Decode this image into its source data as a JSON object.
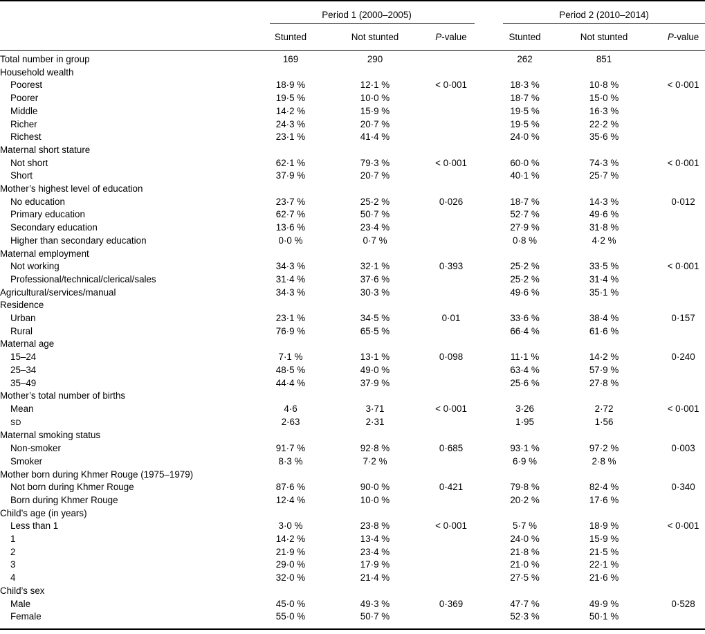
{
  "table": {
    "period_groups": [
      {
        "label": "Period 1 (2000–2005)"
      },
      {
        "label": "Period 2 (2010–2014)"
      }
    ],
    "column_headers": {
      "stunted": "Stunted",
      "not_stunted": "Not stunted",
      "p_value_italic": "P",
      "p_value_rest": "-value"
    },
    "rows": [
      {
        "label": "Total number in group",
        "indent": 0,
        "cells": [
          "169",
          "290",
          "",
          "262",
          "851",
          ""
        ]
      },
      {
        "label": "Household wealth",
        "indent": 0,
        "category": true,
        "cells": []
      },
      {
        "label": "Poorest",
        "indent": 1,
        "cells": [
          "18·9 %",
          "12·1 %",
          "< 0·001",
          "18·3 %",
          "10·8 %",
          "< 0·001"
        ]
      },
      {
        "label": "Poorer",
        "indent": 1,
        "cells": [
          "19·5 %",
          "10·0 %",
          "",
          "18·7 %",
          "15·0 %",
          ""
        ]
      },
      {
        "label": "Middle",
        "indent": 1,
        "cells": [
          "14·2 %",
          "15·9 %",
          "",
          "19·5 %",
          "16·3 %",
          ""
        ]
      },
      {
        "label": "Richer",
        "indent": 1,
        "cells": [
          "24·3 %",
          "20·7 %",
          "",
          "19·5 %",
          "22·2 %",
          ""
        ]
      },
      {
        "label": "Richest",
        "indent": 1,
        "cells": [
          "23·1 %",
          "41·4 %",
          "",
          "24·0 %",
          "35·6 %",
          ""
        ]
      },
      {
        "label": "Maternal short stature",
        "indent": 0,
        "category": true,
        "cells": []
      },
      {
        "label": "Not short",
        "indent": 1,
        "cells": [
          "62·1 %",
          "79·3 %",
          "< 0·001",
          "60·0 %",
          "74·3 %",
          "< 0·001"
        ]
      },
      {
        "label": "Short",
        "indent": 1,
        "cells": [
          "37·9 %",
          "20·7 %",
          "",
          "40·1 %",
          "25·7 %",
          ""
        ]
      },
      {
        "label": "Mother’s highest level of education",
        "indent": 0,
        "category": true,
        "cells": []
      },
      {
        "label": "No education",
        "indent": 1,
        "cells": [
          "23·7 %",
          "25·2 %",
          "0·026",
          "18·7 %",
          "14·3 %",
          "0·012"
        ]
      },
      {
        "label": "Primary education",
        "indent": 1,
        "cells": [
          "62·7 %",
          "50·7 %",
          "",
          "52·7 %",
          "49·6 %",
          ""
        ]
      },
      {
        "label": "Secondary education",
        "indent": 1,
        "cells": [
          "13·6 %",
          "23·4 %",
          "",
          "27·9 %",
          "31·8 %",
          ""
        ]
      },
      {
        "label": "Higher than secondary education",
        "indent": 1,
        "cells": [
          "0·0 %",
          "0·7 %",
          "",
          "0·8 %",
          "4·2 %",
          ""
        ]
      },
      {
        "label": "Maternal employment",
        "indent": 0,
        "category": true,
        "cells": []
      },
      {
        "label": "Not working",
        "indent": 1,
        "cells": [
          "34·3 %",
          "32·1 %",
          "0·393",
          "25·2 %",
          "33·5 %",
          "< 0·001"
        ]
      },
      {
        "label": "Professional/technical/clerical/sales",
        "indent": 1,
        "cells": [
          "31·4 %",
          "37·6 %",
          "",
          "25·2 %",
          "31·4 %",
          ""
        ]
      },
      {
        "label": "Agricultural/services/manual",
        "indent": 0,
        "cells": [
          "34·3 %",
          "30·3 %",
          "",
          "49·6 %",
          "35·1 %",
          ""
        ]
      },
      {
        "label": "Residence",
        "indent": 0,
        "category": true,
        "cells": []
      },
      {
        "label": "Urban",
        "indent": 1,
        "cells": [
          "23·1 %",
          "34·5 %",
          "0·01",
          "33·6 %",
          "38·4 %",
          "0·157"
        ]
      },
      {
        "label": "Rural",
        "indent": 1,
        "cells": [
          "76·9 %",
          "65·5 %",
          "",
          "66·4 %",
          "61·6 %",
          ""
        ]
      },
      {
        "label": "Maternal age",
        "indent": 0,
        "category": true,
        "cells": []
      },
      {
        "label": "15–24",
        "indent": 1,
        "cells": [
          "7·1 %",
          "13·1 %",
          "0·098",
          "11·1 %",
          "14·2 %",
          "0·240"
        ]
      },
      {
        "label": "25–34",
        "indent": 1,
        "cells": [
          "48·5 %",
          "49·0 %",
          "",
          "63·4 %",
          "57·9 %",
          ""
        ]
      },
      {
        "label": "35–49",
        "indent": 1,
        "cells": [
          "44·4 %",
          "37·9 %",
          "",
          "25·6 %",
          "27·8 %",
          ""
        ]
      },
      {
        "label": "Mother’s total number of births",
        "indent": 0,
        "category": true,
        "cells": []
      },
      {
        "label": "Mean",
        "indent": 1,
        "cells": [
          "4·6",
          "3·71",
          "< 0·001",
          "3·26",
          "2·72",
          "< 0·001"
        ]
      },
      {
        "label": "SD",
        "indent": 1,
        "smallcaps": true,
        "cells": [
          "2·63",
          "2·31",
          "",
          "1·95",
          "1·56",
          ""
        ]
      },
      {
        "label": "Maternal smoking status",
        "indent": 0,
        "category": true,
        "cells": []
      },
      {
        "label": "Non-smoker",
        "indent": 1,
        "cells": [
          "91·7 %",
          "92·8 %",
          "0·685",
          "93·1 %",
          "97·2 %",
          "0·003"
        ]
      },
      {
        "label": "Smoker",
        "indent": 1,
        "cells": [
          "8·3 %",
          "7·2 %",
          "",
          "6·9 %",
          "2·8 %",
          ""
        ]
      },
      {
        "label": "Mother born during Khmer Rouge (1975–1979)",
        "indent": 0,
        "category": true,
        "cells": []
      },
      {
        "label": "Not born during Khmer Rouge",
        "indent": 1,
        "cells": [
          "87·6 %",
          "90·0 %",
          "0·421",
          "79·8 %",
          "82·4 %",
          "0·340"
        ]
      },
      {
        "label": "Born during Khmer Rouge",
        "indent": 1,
        "cells": [
          "12·4 %",
          "10·0 %",
          "",
          "20·2 %",
          "17·6 %",
          ""
        ]
      },
      {
        "label": "Child’s age (in years)",
        "indent": 0,
        "category": true,
        "cells": []
      },
      {
        "label": "Less than 1",
        "indent": 1,
        "cells": [
          "3·0 %",
          "23·8 %",
          "< 0·001",
          "5·7 %",
          "18·9 %",
          "< 0·001"
        ]
      },
      {
        "label": "1",
        "indent": 1,
        "cells": [
          "14·2 %",
          "13·4 %",
          "",
          "24·0 %",
          "15·9 %",
          ""
        ]
      },
      {
        "label": "2",
        "indent": 1,
        "cells": [
          "21·9 %",
          "23·4 %",
          "",
          "21·8 %",
          "21·5 %",
          ""
        ]
      },
      {
        "label": "3",
        "indent": 1,
        "cells": [
          "29·0 %",
          "17·9 %",
          "",
          "21·0 %",
          "22·1 %",
          ""
        ]
      },
      {
        "label": "4",
        "indent": 1,
        "cells": [
          "32·0 %",
          "21·4 %",
          "",
          "27·5 %",
          "21·6 %",
          ""
        ]
      },
      {
        "label": "Child’s sex",
        "indent": 0,
        "category": true,
        "cells": []
      },
      {
        "label": "Male",
        "indent": 1,
        "cells": [
          "45·0 %",
          "49·3 %",
          "0·369",
          "47·7 %",
          "49·9 %",
          "0·528"
        ]
      },
      {
        "label": "Female",
        "indent": 1,
        "cells": [
          "55·0 %",
          "50·7 %",
          "",
          "52·3 %",
          "50·1 %",
          ""
        ]
      }
    ]
  }
}
